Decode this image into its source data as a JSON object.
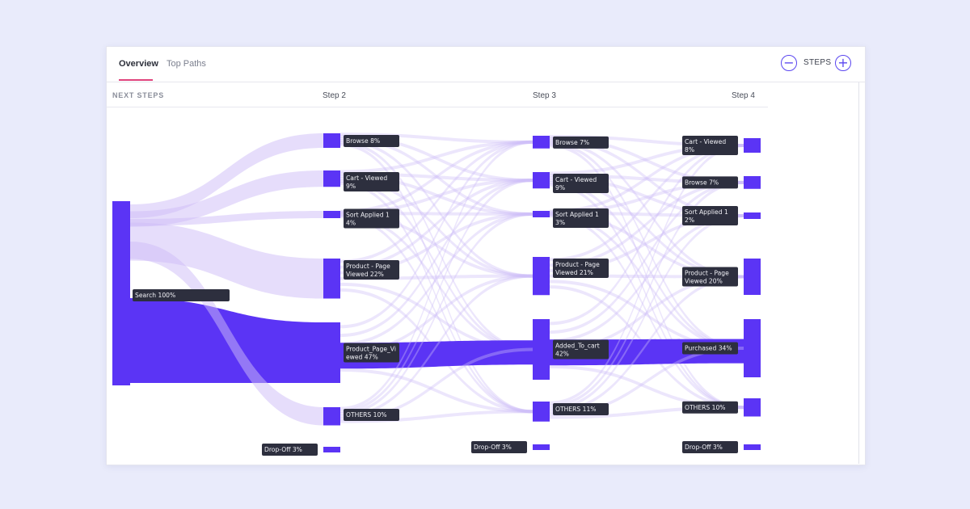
{
  "tabs": [
    {
      "label": "Overview",
      "active": true
    },
    {
      "label": "Top Paths",
      "active": false
    }
  ],
  "steps_control": {
    "label": "STEPS",
    "minus_icon": "minus-circle-icon",
    "plus_icon": "plus-circle-icon"
  },
  "columns": [
    "NEXT STEPS",
    "Step 2",
    "Step 3",
    "Step 4"
  ],
  "colors": {
    "accent": "#5b34f5",
    "flow_light": "#cdbcf7",
    "label_bg": "#2d2f3e",
    "tab_underline": "#e0447c"
  },
  "chart_data": {
    "type": "sankey",
    "steps": [
      {
        "name": "NEXT STEPS",
        "nodes": [
          {
            "label": "Search 100%",
            "name": "Search",
            "percent": 100
          }
        ]
      },
      {
        "name": "Step 2",
        "nodes": [
          {
            "label": "Browse 8%",
            "name": "Browse",
            "percent": 8
          },
          {
            "label": "Cart - Viewed 9%",
            "name": "Cart - Viewed",
            "percent": 9
          },
          {
            "label": "Sort Applied 1 4%",
            "name": "Sort Applied 1",
            "percent": 4
          },
          {
            "label": "Product - Page Viewed 22%",
            "name": "Product - Page Viewed",
            "percent": 22
          },
          {
            "label": "Product_Page_Viewed 47%",
            "name": "Product_Page_Viewed",
            "percent": 47
          },
          {
            "label": "OTHERS 10%",
            "name": "OTHERS",
            "percent": 10
          },
          {
            "label": "Drop-Off 3%",
            "name": "Drop-Off",
            "percent": 3
          }
        ]
      },
      {
        "name": "Step 3",
        "nodes": [
          {
            "label": "Browse 7%",
            "name": "Browse",
            "percent": 7
          },
          {
            "label": "Cart - Viewed 9%",
            "name": "Cart - Viewed",
            "percent": 9
          },
          {
            "label": "Sort Applied 1 3%",
            "name": "Sort Applied 1",
            "percent": 3
          },
          {
            "label": "Product - Page Viewed 21%",
            "name": "Product - Page Viewed",
            "percent": 21
          },
          {
            "label": "Added_To_cart 42%",
            "name": "Added_To_cart",
            "percent": 42
          },
          {
            "label": "OTHERS 11%",
            "name": "OTHERS",
            "percent": 11
          },
          {
            "label": "Drop-Off 3%",
            "name": "Drop-Off",
            "percent": 3
          }
        ]
      },
      {
        "name": "Step 4",
        "nodes": [
          {
            "label": "Cart - Viewed 8%",
            "name": "Cart - Viewed",
            "percent": 8
          },
          {
            "label": "Browse 7%",
            "name": "Browse",
            "percent": 7
          },
          {
            "label": "Sort Applied 1 2%",
            "name": "Sort Applied 1",
            "percent": 2
          },
          {
            "label": "Product - Page Viewed 20%",
            "name": "Product - Page Viewed",
            "percent": 20
          },
          {
            "label": "Purchased 34%",
            "name": "Purchased",
            "percent": 34
          },
          {
            "label": "OTHERS 10%",
            "name": "OTHERS",
            "percent": 10
          },
          {
            "label": "Drop-Off 3%",
            "name": "Drop-Off",
            "percent": 3
          }
        ]
      }
    ],
    "main_path": [
      "Search",
      "Product_Page_Viewed",
      "Added_To_cart",
      "Purchased"
    ]
  }
}
